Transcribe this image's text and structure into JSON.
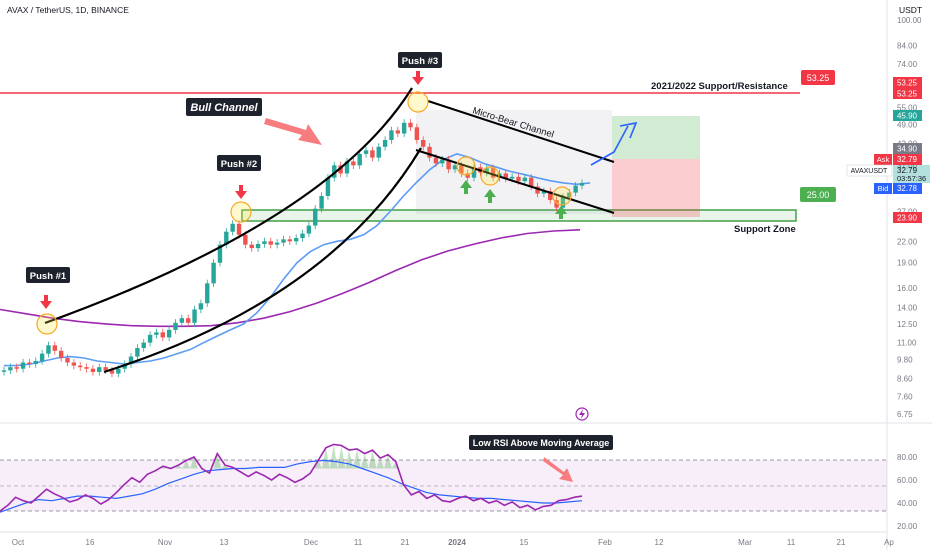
{
  "header": {
    "symbol_line": "AVAX / TetherUS, 1D, BINANCE",
    "currency": "USDT"
  },
  "colors": {
    "up": "#26a69a",
    "down": "#ef5350",
    "ema_short": "#5b9cf6",
    "ema_long": "#9c27b0",
    "resistance": "#f23645",
    "support": "#4caf50",
    "rsi": "#9c27b0",
    "rsi_ma": "#2962ff",
    "annot_dark": "#1e222d"
  },
  "annotations": {
    "push1": "Push #1",
    "push2": "Push #2",
    "push3": "Push #3",
    "bull_channel": "Bull Channel",
    "micro_bear": "Micro-Bear Channel",
    "resistance_label": "2021/2022 Support/Resistance",
    "support_zone": "Support Zone",
    "resistance_price": "53.25",
    "support_price": "25.00",
    "rsi_note": "Low RSI Above Moving Average"
  },
  "price_scale_labels": {
    "res_a": "53.25",
    "res_b": "53.25",
    "target": "45.90",
    "entry_top": "34.90",
    "ask_label": "Ask",
    "ask": "32.79",
    "symbol_tag": "AVAXUSDT",
    "last": "32.79",
    "countdown": "03:57:36",
    "bid_label": "Bid",
    "bid": "32.78",
    "stop": "23.90"
  },
  "chart_data": [
    {
      "type": "candlestick",
      "title": "AVAX / TetherUS, 1D, BINANCE",
      "y_scale": "log",
      "ylim": [
        6.75,
        100
      ],
      "y_ticks": [
        "100.00",
        "84.00",
        "74.00",
        "64.00",
        "55.00",
        "49.00",
        "43.00",
        "37.00",
        "32.00",
        "27.00",
        "22.00",
        "19.00",
        "16.00",
        "14.00",
        "12.50",
        "11.00",
        "9.80",
        "8.60",
        "7.60",
        "6.75"
      ],
      "x_ticks": [
        "Oct",
        "16",
        "Nov",
        "13",
        "Dec",
        "11",
        "21",
        "2024",
        "15",
        "Feb",
        "12",
        "Mar",
        "11",
        "21",
        "Ap"
      ],
      "candle_closes": [
        9.1,
        9.3,
        9.2,
        9.6,
        9.5,
        9.7,
        10.2,
        10.8,
        10.4,
        9.9,
        9.6,
        9.4,
        9.3,
        9.2,
        9.0,
        9.3,
        9.1,
        8.9,
        9.2,
        9.5,
        10.0,
        10.6,
        11.0,
        11.6,
        11.8,
        11.4,
        12.0,
        12.6,
        13.0,
        12.6,
        13.8,
        14.4,
        16.5,
        19.0,
        21.5,
        23.5,
        24.8,
        23.0,
        21.5,
        21.0,
        21.6,
        22.0,
        21.5,
        21.8,
        22.3,
        22.0,
        22.5,
        23.2,
        24.5,
        27.5,
        30.0,
        34.0,
        37.0,
        35.0,
        38.0,
        37.0,
        40.0,
        41.0,
        39.0,
        42.0,
        44.0,
        47.0,
        46.0,
        49.5,
        48.0,
        44.0,
        42.0,
        39.0,
        37.5,
        38.5,
        36.0,
        37.0,
        35.0,
        34.0,
        36.5,
        35.2,
        36.3,
        34.0,
        35.0,
        33.8,
        34.2,
        33.2,
        34.0,
        32.0,
        30.5,
        31.0,
        29.2,
        27.7,
        29.8,
        30.7,
        32.2,
        32.8
      ],
      "ema_20_approx": [
        9.4,
        9.4,
        9.5,
        9.7,
        9.9,
        10.0,
        9.9,
        9.7,
        9.6,
        9.5,
        9.6,
        9.7,
        9.9,
        10.2,
        10.5,
        11.0,
        11.5,
        12.0,
        12.5,
        13.5,
        15.0,
        17.0,
        19.0,
        20.5,
        21.5,
        22.0,
        22.3,
        23.0,
        24.5,
        27.0,
        30.0,
        33.0,
        36.0,
        38.5,
        40.0,
        39.0,
        37.5,
        36.5,
        35.5,
        34.8,
        34.0,
        33.3,
        32.8,
        32.5,
        32.8
      ],
      "ema_200_approx": [
        13.8,
        13.4,
        13.0,
        12.7,
        12.5,
        12.35,
        12.3,
        12.3,
        12.35,
        12.6,
        13.0,
        13.6,
        14.4,
        15.4,
        16.6,
        18.0,
        19.4,
        20.6,
        21.6,
        22.5,
        23.2,
        23.6,
        23.8
      ],
      "horizontal_levels": [
        {
          "label": "2021/2022 Support/Resistance",
          "value": 53.25
        },
        {
          "label": "Support Zone",
          "from": 23.9,
          "to": 25.0
        }
      ],
      "trade_box": {
        "entry": 34.9,
        "target": 45.9,
        "stop": 23.9
      }
    },
    {
      "type": "line",
      "title": "RSI",
      "ylim": [
        20,
        100
      ],
      "y_ticks": [
        "80.00",
        "60.00",
        "40.00",
        "20.00"
      ],
      "bands": {
        "upper": 70,
        "middle": 50,
        "lower": 30
      },
      "series": [
        {
          "values": [
            33,
            38,
            45,
            42,
            40,
            46,
            52,
            48,
            45,
            41,
            43,
            47,
            44,
            39,
            43,
            49,
            56,
            62,
            58,
            65,
            68,
            72,
            70,
            73,
            77,
            80,
            70,
            66,
            83,
            73,
            71,
            67,
            63,
            67,
            64,
            60,
            65,
            62,
            58,
            61,
            66,
            77,
            88,
            91,
            90,
            86,
            87,
            83,
            86,
            79,
            82,
            76,
            56,
            47,
            50,
            44,
            47,
            42,
            41,
            44,
            46,
            42,
            44,
            40,
            42,
            38,
            41,
            36,
            38,
            34,
            37,
            38,
            42,
            43,
            45,
            46
          ]
        },
        {
          "values": [
            32,
            36,
            40,
            43,
            42,
            44,
            46,
            46,
            45,
            44,
            46,
            48,
            52,
            57,
            61,
            65,
            68,
            69,
            70,
            70,
            71,
            71,
            71,
            74,
            76,
            77,
            76,
            74,
            70,
            66,
            62,
            57,
            53,
            49,
            47,
            46,
            45,
            44,
            44,
            43,
            42,
            41,
            40,
            40,
            41,
            42
          ]
        }
      ]
    }
  ]
}
